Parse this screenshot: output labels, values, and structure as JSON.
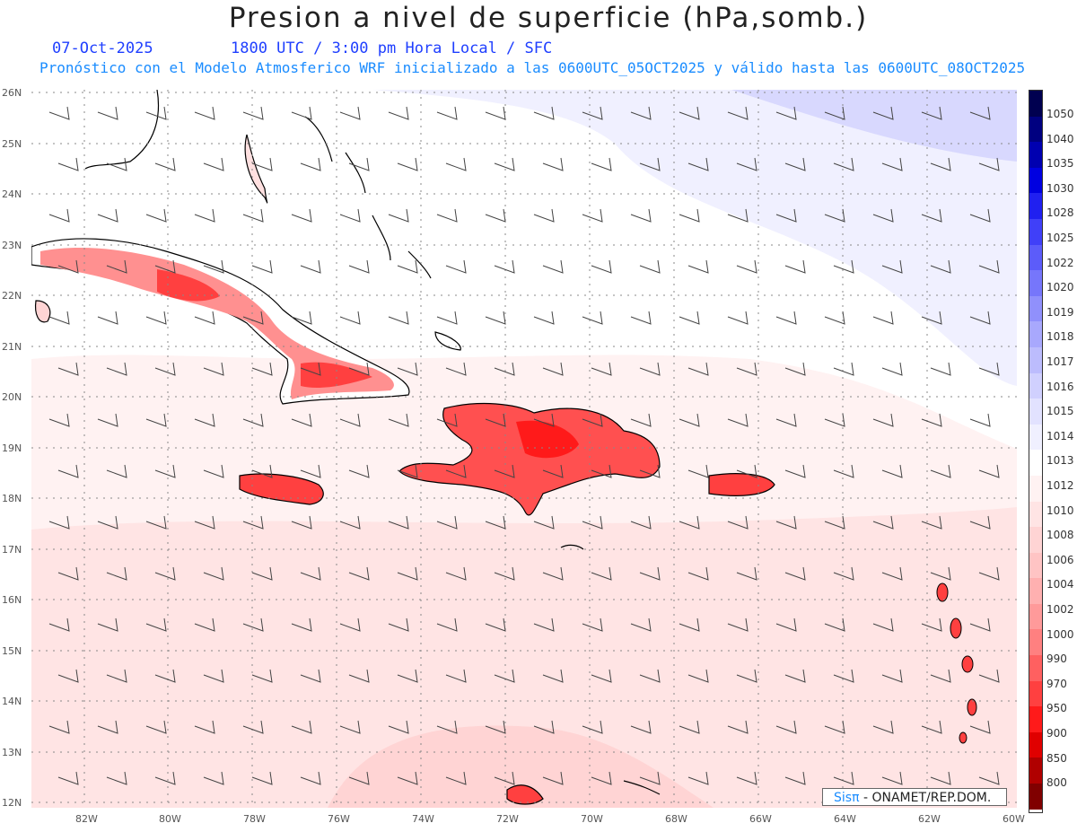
{
  "header": {
    "title": "Presion a nivel de superficie (hPa,somb.)",
    "date": "07-Oct-2025",
    "time": "1800 UTC / 3:00 pm Hora Local / SFC",
    "forecast": "Pronóstico con el Modelo Atmosferico WRF inicializado a las 0600UTC_05OCT2025 y válido hasta las  0600UTC_08OCT2025"
  },
  "map": {
    "lat_labels": [
      "26N",
      "25N",
      "24N",
      "23N",
      "22N",
      "21N",
      "20N",
      "19N",
      "18N",
      "17N",
      "16N",
      "15N",
      "14N",
      "13N",
      "12N"
    ],
    "lon_labels": [
      "82W",
      "80W",
      "78W",
      "76W",
      "74W",
      "72W",
      "70W",
      "68W",
      "66W",
      "64W",
      "62W",
      "60W"
    ]
  },
  "colorbar": {
    "labels": [
      "1050",
      "1040",
      "1035",
      "1030",
      "1028",
      "1025",
      "1022",
      "1020",
      "1019",
      "1018",
      "1017",
      "1016",
      "1015",
      "1014",
      "1013",
      "1012",
      "1010",
      "1008",
      "1006",
      "1004",
      "1002",
      "1000",
      "990",
      "970",
      "950",
      "900",
      "850",
      "800"
    ],
    "colors": [
      "#000050",
      "#000080",
      "#0000b0",
      "#0000e0",
      "#2020f0",
      "#4040f8",
      "#5c5cfa",
      "#7676fb",
      "#9090fc",
      "#a8a8fd",
      "#bcbcfd",
      "#d0d0fe",
      "#e2e2ff",
      "#f0f0ff",
      "#ffffff",
      "#fff2f2",
      "#ffe4e4",
      "#ffd4d4",
      "#ffc4c4",
      "#ffb0b0",
      "#ff9a9a",
      "#ff8080",
      "#ff6060",
      "#ff4040",
      "#ff1a1a",
      "#e00000",
      "#b00000",
      "#800000"
    ]
  },
  "credit": {
    "brand": "Sisπ",
    "text": "- ONAMET/REP.DOM."
  }
}
